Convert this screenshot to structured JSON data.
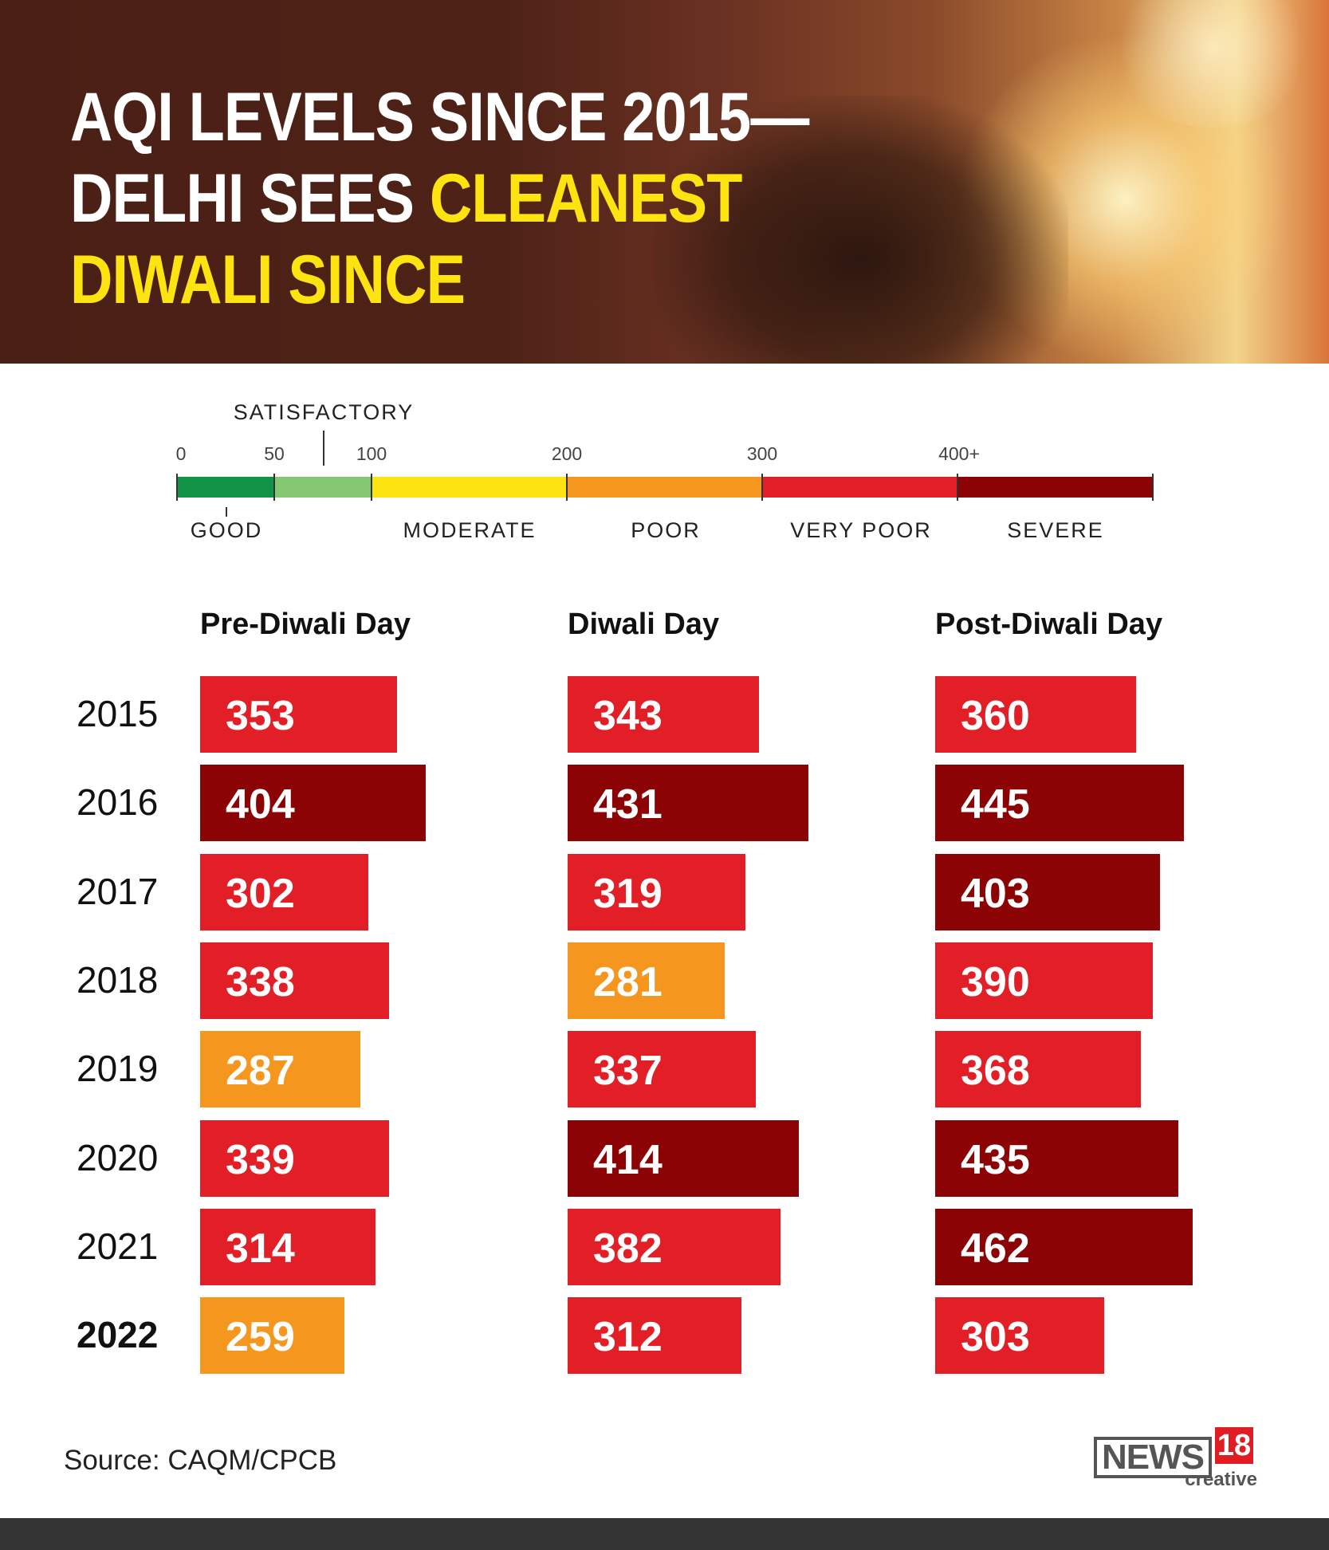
{
  "header": {
    "title_line1": "AQI LEVELS SINCE 2015—",
    "title_line2a": "DELHI SEES ",
    "title_line2b": "CLEANEST",
    "title_line3": "DIWALI SINCE"
  },
  "scale": {
    "ticks": [
      "0",
      "50",
      "100",
      "200",
      "300",
      "400+"
    ],
    "categories": [
      {
        "label": "GOOD",
        "color": "#119347"
      },
      {
        "label": "SATISFACTORY",
        "color": "#86c872"
      },
      {
        "label": "MODERATE",
        "color": "#fde30f"
      },
      {
        "label": "POOR",
        "color": "#f5961f"
      },
      {
        "label": "VERY POOR",
        "color": "#e21f26"
      },
      {
        "label": "SEVERE",
        "color": "#8b0304"
      }
    ]
  },
  "chart_data": {
    "type": "bar",
    "orientation": "horizontal",
    "categories": [
      "2015",
      "2016",
      "2017",
      "2018",
      "2019",
      "2020",
      "2021",
      "2022"
    ],
    "series": [
      {
        "name": "Pre-Diwali Day",
        "values": [
          353,
          404,
          302,
          338,
          287,
          339,
          314,
          259
        ]
      },
      {
        "name": "Diwali Day",
        "values": [
          343,
          431,
          319,
          281,
          337,
          414,
          382,
          312
        ]
      },
      {
        "name": "Post-Diwali Day",
        "values": [
          360,
          445,
          403,
          390,
          368,
          435,
          462,
          303
        ]
      }
    ],
    "colors": {
      "poor": "#f5961f",
      "very_poor": "#e21f26",
      "severe": "#8b0304"
    }
  },
  "source": "Source: CAQM/CPCB",
  "logo": {
    "news": "NEWS",
    "num": "18",
    "sub": "creative"
  }
}
